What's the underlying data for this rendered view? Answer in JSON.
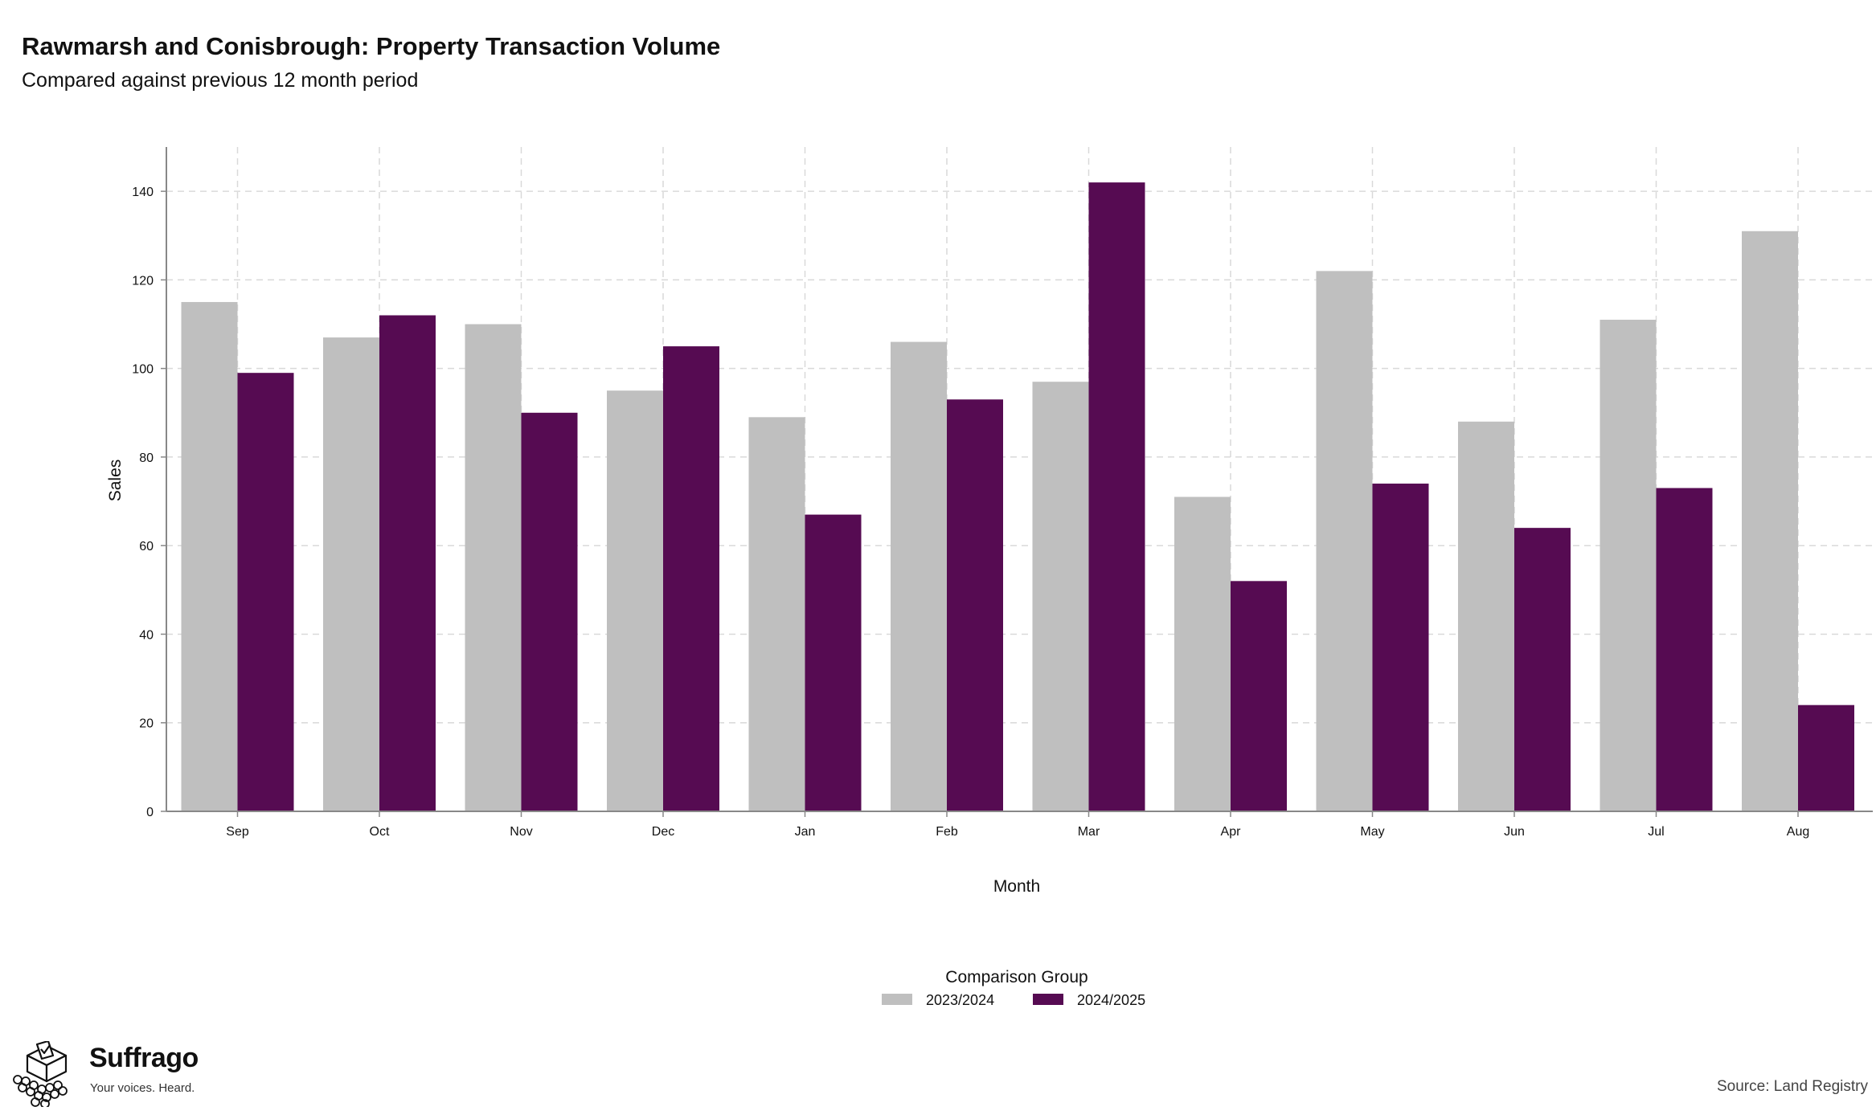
{
  "chart_data": {
    "type": "bar",
    "title": "Rawmarsh and Conisbrough: Property Transaction Volume",
    "subtitle": "Compared against previous 12 month period",
    "xlabel": "Month",
    "ylabel": "Sales",
    "categories": [
      "Sep",
      "Oct",
      "Nov",
      "Dec",
      "Jan",
      "Feb",
      "Mar",
      "Apr",
      "May",
      "Jun",
      "Jul",
      "Aug"
    ],
    "series": [
      {
        "name": "2023/2024",
        "color": "#bfbfbf",
        "values": [
          115,
          107,
          110,
          95,
          89,
          106,
          97,
          71,
          122,
          88,
          111,
          131
        ]
      },
      {
        "name": "2024/2025",
        "color": "#560b52",
        "values": [
          99,
          112,
          90,
          105,
          67,
          93,
          142,
          52,
          74,
          64,
          73,
          24
        ]
      }
    ],
    "ylim": [
      0,
      150
    ],
    "yticks": [
      0,
      20,
      40,
      60,
      80,
      100,
      120,
      140
    ],
    "grid": true,
    "legend": {
      "title": "Comparison Group",
      "placement": "bottom-center"
    }
  },
  "brand": {
    "name": "Suffrago",
    "tagline": "Your voices. Heard.",
    "logo_icon": "ballot-box-icon"
  },
  "source": "Source: Land Registry"
}
